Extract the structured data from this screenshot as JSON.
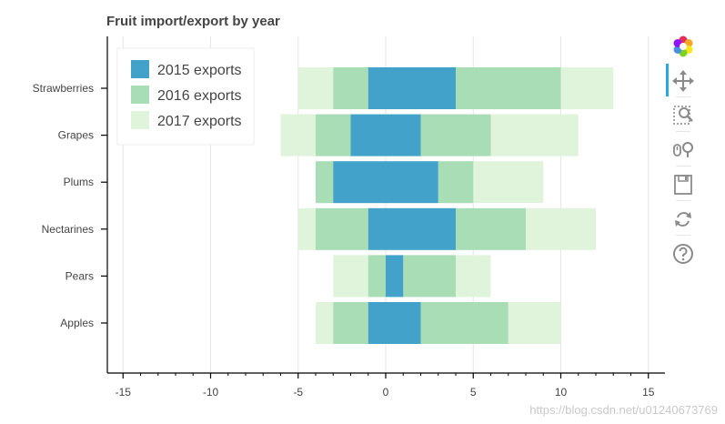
{
  "chart_data": {
    "type": "bar",
    "orientation": "horizontal",
    "stacked": true,
    "title": "Fruit import/export by year",
    "categories": [
      "Apples",
      "Pears",
      "Nectarines",
      "Plums",
      "Grapes",
      "Strawberries"
    ],
    "series": [
      {
        "name": "2015 exports",
        "color": "#43a2ca",
        "ranges": [
          [
            -1,
            2
          ],
          [
            0,
            1
          ],
          [
            -1,
            4
          ],
          [
            -3,
            3
          ],
          [
            -2,
            2
          ],
          [
            -1,
            4
          ]
        ]
      },
      {
        "name": "2016 exports",
        "color": "#a8ddb5",
        "ranges": [
          [
            -3,
            -1
          ],
          [
            -1,
            0
          ],
          [
            -4,
            -1
          ],
          [
            -4,
            -3
          ],
          [
            -4,
            -2
          ],
          [
            -3,
            -1
          ]
        ]
      },
      {
        "name": "2016 exports",
        "color": "#a8ddb5",
        "ranges": [
          [
            2,
            7
          ],
          [
            1,
            4
          ],
          [
            4,
            8
          ],
          [
            3,
            5
          ],
          [
            2,
            6
          ],
          [
            4,
            10
          ]
        ]
      },
      {
        "name": "2017 exports",
        "color": "#e0f3db",
        "ranges": [
          [
            -4,
            -3
          ],
          [
            -3,
            -1
          ],
          [
            -5,
            -4
          ],
          [
            -4,
            -4
          ],
          [
            -6,
            -4
          ],
          [
            -5,
            -3
          ]
        ]
      },
      {
        "name": "2017 exports",
        "color": "#e0f3db",
        "ranges": [
          [
            7,
            10
          ],
          [
            4,
            6
          ],
          [
            8,
            12
          ],
          [
            5,
            9
          ],
          [
            6,
            11
          ],
          [
            10,
            13
          ]
        ]
      }
    ],
    "legend": {
      "position": "top-left",
      "entries": [
        {
          "label": "2015 exports",
          "color": "#43a2ca"
        },
        {
          "label": "2016 exports",
          "color": "#a8ddb5"
        },
        {
          "label": "2017 exports",
          "color": "#e0f3db"
        }
      ]
    },
    "xlim": [
      -16,
      16
    ],
    "xticks": [
      -15,
      -10,
      -5,
      0,
      5,
      10,
      15
    ],
    "xlabel": "",
    "ylabel": "",
    "grid": true
  },
  "toolbar": {
    "logo": "bokeh-logo-icon",
    "tools": [
      "pan-icon",
      "box-zoom-icon",
      "wheel-zoom-icon",
      "save-icon",
      "reset-icon",
      "help-icon"
    ],
    "active_color": "#26aae1"
  },
  "watermark": "https://blog.csdn.net/u012406737​69"
}
